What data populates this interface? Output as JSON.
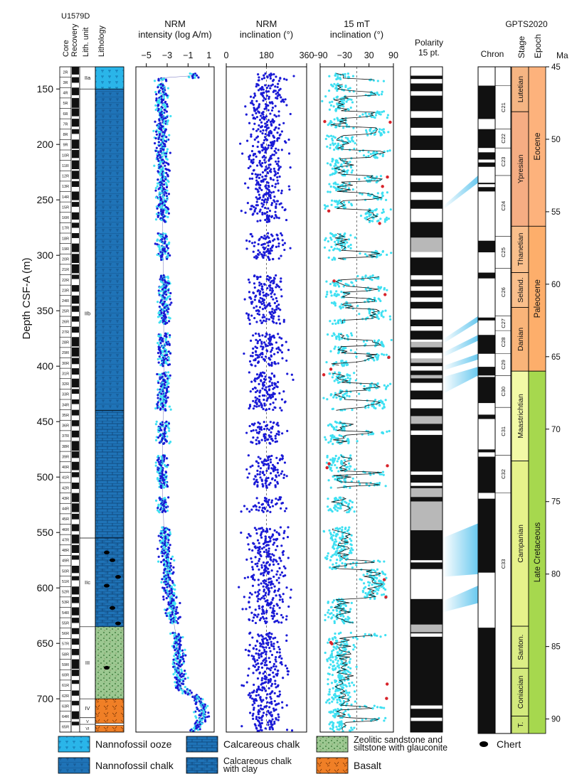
{
  "header": {
    "site": "U1579D",
    "core": "Core",
    "recovery": "Recovery",
    "lith_unit": "Lith. unit",
    "lithology": "Lithology",
    "polarity_line1": "Polarity",
    "polarity_line2": "15 pt.",
    "gpts": "GPTS2020",
    "chron": "Chron",
    "stage": "Stage",
    "epoch": "Epoch",
    "ma": "Ma"
  },
  "depth_axis": {
    "label": "Depth CSF-A (m)",
    "range": [
      130,
      730
    ],
    "ticks": [
      150,
      200,
      250,
      300,
      350,
      400,
      450,
      500,
      550,
      600,
      650,
      700
    ]
  },
  "age_axis": {
    "range": [
      45,
      91
    ],
    "ticks": [
      45,
      50,
      55,
      60,
      65,
      70,
      75,
      80,
      85,
      90
    ]
  },
  "cores": [
    "2R",
    "3R",
    "4R",
    "5R",
    "6R",
    "7R",
    "8R",
    "9R",
    "10R",
    "11R",
    "12R",
    "13R",
    "14R",
    "15R",
    "16R",
    "17R",
    "18R",
    "19R",
    "20R",
    "21R",
    "22R",
    "23R",
    "24R",
    "25R",
    "26R",
    "27R",
    "28R",
    "29R",
    "30R",
    "31R",
    "32R",
    "33R",
    "34R",
    "35R",
    "36R",
    "37R",
    "38R",
    "39R",
    "40R",
    "41R",
    "42R",
    "43R",
    "44R",
    "45R",
    "46R",
    "47R",
    "48R",
    "49R",
    "50R",
    "51R",
    "52R",
    "53R",
    "54R",
    "55R",
    "56R",
    "57R",
    "58R",
    "59R",
    "60R",
    "61R",
    "62R",
    "63R",
    "64R",
    "65R"
  ],
  "lith_units": [
    {
      "label": "IIa",
      "top": 130,
      "bottom": 150
    },
    {
      "label": "IIb",
      "top": 150,
      "bottom": 555
    },
    {
      "label": "IIc",
      "top": 555,
      "bottom": 635
    },
    {
      "label": "III",
      "top": 635,
      "bottom": 700
    },
    {
      "label": "IV",
      "top": 700,
      "bottom": 717
    },
    {
      "label": "V",
      "top": 717,
      "bottom": 723
    },
    {
      "label": "VI",
      "top": 723,
      "bottom": 730
    }
  ],
  "lithology": [
    {
      "type": "ooze",
      "top": 130,
      "bottom": 150
    },
    {
      "type": "chalk",
      "top": 150,
      "bottom": 440
    },
    {
      "type": "calc_chalk",
      "top": 440,
      "bottom": 555
    },
    {
      "type": "chalk_clay",
      "top": 555,
      "bottom": 635
    },
    {
      "type": "zeolitic",
      "top": 635,
      "bottom": 700
    },
    {
      "type": "basalt",
      "top": 700,
      "bottom": 722
    },
    {
      "type": "basalt",
      "top": 724,
      "bottom": 730
    }
  ],
  "chert_depths": [
    568,
    575,
    590,
    598,
    618,
    632,
    672
  ],
  "chart_data": [
    {
      "type": "scatter",
      "title": "NRM\nintensity (log A/m)",
      "xlim": [
        -6,
        1.5
      ],
      "xticks": [
        -5,
        -3,
        -1,
        1
      ],
      "xticklabels": [
        "−5",
        "−3",
        "−1",
        "1"
      ],
      "profile": [
        [
          140,
          -3.5
        ],
        [
          200,
          -3.5
        ],
        [
          300,
          -3.4
        ],
        [
          400,
          -3.3
        ],
        [
          500,
          -3.5
        ],
        [
          550,
          -3.3
        ],
        [
          600,
          -2.8
        ],
        [
          635,
          -2.3
        ],
        [
          650,
          -2.0
        ],
        [
          690,
          -1.7
        ],
        [
          700,
          0.0
        ],
        [
          715,
          0.5
        ],
        [
          730,
          -0.5
        ]
      ]
    },
    {
      "type": "scatter",
      "title": "NRM\ninclination (°)",
      "xlim": [
        0,
        360
      ],
      "xticks": [
        0,
        180,
        360
      ],
      "xticklabels": [
        "0",
        "180",
        "360"
      ],
      "center": 180
    },
    {
      "type": "scatter",
      "title": "15 mT\ninclination (°)",
      "xlim": [
        -90,
        90
      ],
      "xticks": [
        -90,
        -30,
        30,
        90
      ],
      "xticklabels": [
        "−90",
        "−30",
        "30",
        "90"
      ],
      "center": 0
    }
  ],
  "polarity_15pt": [
    {
      "top": 141,
      "bottom": 145,
      "pol": "N"
    },
    {
      "top": 152,
      "bottom": 156,
      "pol": "N"
    },
    {
      "top": 170,
      "bottom": 176,
      "pol": "N"
    },
    {
      "top": 185,
      "bottom": 192,
      "pol": "N"
    },
    {
      "top": 205,
      "bottom": 212,
      "pol": "N"
    },
    {
      "top": 228,
      "bottom": 234,
      "pol": "N"
    },
    {
      "top": 243,
      "bottom": 250,
      "pol": "N"
    },
    {
      "top": 258,
      "bottom": 270,
      "pol": "N"
    },
    {
      "top": 296,
      "bottom": 302,
      "pol": "N"
    },
    {
      "top": 318,
      "bottom": 322,
      "pol": "N"
    },
    {
      "top": 328,
      "bottom": 332,
      "pol": "N"
    },
    {
      "top": 338,
      "bottom": 342,
      "pol": "N"
    },
    {
      "top": 348,
      "bottom": 358,
      "pol": "N"
    },
    {
      "top": 364,
      "bottom": 368,
      "pol": "N"
    },
    {
      "top": 376,
      "bottom": 382,
      "pol": "N"
    },
    {
      "top": 388,
      "bottom": 395,
      "pol": "N"
    },
    {
      "top": 400,
      "bottom": 404,
      "pol": "N"
    },
    {
      "top": 415,
      "bottom": 422,
      "pol": "N"
    },
    {
      "top": 430,
      "bottom": 438,
      "pol": "N"
    },
    {
      "top": 458,
      "bottom": 462,
      "pol": "N"
    },
    {
      "top": 495,
      "bottom": 498,
      "pol": "N"
    },
    {
      "top": 505,
      "bottom": 508,
      "pol": "N"
    },
    {
      "top": 575,
      "bottom": 577,
      "pol": "N"
    },
    {
      "top": 583,
      "bottom": 610,
      "pol": "N"
    },
    {
      "top": 641,
      "bottom": 644,
      "pol": "N"
    },
    {
      "top": 706,
      "bottom": 709,
      "pol": "N"
    },
    {
      "top": 717,
      "bottom": 720,
      "pol": "N"
    }
  ],
  "polarity_gaps": [
    {
      "top": 284,
      "bottom": 297
    },
    {
      "top": 378,
      "bottom": 383
    },
    {
      "top": 393,
      "bottom": 397
    },
    {
      "top": 408,
      "bottom": 411
    },
    {
      "top": 445,
      "bottom": 452
    },
    {
      "top": 510,
      "bottom": 518
    },
    {
      "top": 522,
      "bottom": 548
    },
    {
      "top": 633,
      "bottom": 640
    }
  ],
  "gpts_chrons": [
    {
      "label": "C21",
      "top": 46.3,
      "bottom": 49.3
    },
    {
      "label": "C22",
      "top": 49.3,
      "bottom": 50.6
    },
    {
      "label": "C23",
      "top": 50.6,
      "bottom": 52.5
    },
    {
      "label": "C24",
      "top": 52.5,
      "bottom": 56.7
    },
    {
      "label": "C25",
      "top": 56.7,
      "bottom": 58.9
    },
    {
      "label": "C26",
      "top": 58.9,
      "bottom": 62.2
    },
    {
      "label": "C27",
      "top": 62.2,
      "bottom": 63.2
    },
    {
      "label": "C28",
      "top": 63.2,
      "bottom": 64.8
    },
    {
      "label": "C29",
      "top": 64.8,
      "bottom": 66.3
    },
    {
      "label": "C30",
      "top": 66.3,
      "bottom": 68.5
    },
    {
      "label": "C31",
      "top": 68.5,
      "bottom": 71.8
    },
    {
      "label": "C32",
      "top": 71.8,
      "bottom": 74.4
    },
    {
      "label": "C33",
      "top": 74.4,
      "bottom": 84.2
    }
  ],
  "gpts_normals": [
    {
      "top": 46.3,
      "bottom": 48.6
    },
    {
      "top": 49.3,
      "bottom": 50.6
    },
    {
      "top": 50.9,
      "bottom": 51.4
    },
    {
      "top": 51.6,
      "bottom": 51.9
    },
    {
      "top": 53.0,
      "bottom": 53.1
    },
    {
      "top": 53.3,
      "bottom": 53.6
    },
    {
      "top": 57.0,
      "bottom": 57.8
    },
    {
      "top": 59.2,
      "bottom": 59.6
    },
    {
      "top": 62.3,
      "bottom": 62.5
    },
    {
      "top": 63.5,
      "bottom": 64.8
    },
    {
      "top": 65.7,
      "bottom": 66.3
    },
    {
      "top": 66.4,
      "bottom": 68.2
    },
    {
      "top": 69.0,
      "bottom": 69.3
    },
    {
      "top": 71.4,
      "bottom": 71.6
    },
    {
      "top": 71.9,
      "bottom": 74.4
    },
    {
      "top": 74.8,
      "bottom": 79.9
    },
    {
      "top": 83.7,
      "bottom": 91.0
    }
  ],
  "stages": [
    {
      "label": "Lutetian",
      "top": 45.0,
      "bottom": 48.1,
      "color": "#f5b583"
    },
    {
      "label": "Ypresian",
      "top": 48.1,
      "bottom": 56.0,
      "color": "#f5ad83"
    },
    {
      "label": "Thanetian",
      "top": 56.0,
      "bottom": 59.2,
      "color": "#f9bf8c"
    },
    {
      "label": "Seland.",
      "top": 59.2,
      "bottom": 61.6,
      "color": "#f9bf8c"
    },
    {
      "label": "Danian",
      "top": 61.6,
      "bottom": 66.0,
      "color": "#f9b479"
    },
    {
      "label": "Maastrichtian",
      "top": 66.0,
      "bottom": 72.2,
      "color": "#f2f9a6"
    },
    {
      "label": "Campanian",
      "top": 72.2,
      "bottom": 83.6,
      "color": "#e6f28b"
    },
    {
      "label": "Santon.",
      "top": 83.6,
      "bottom": 86.5,
      "color": "#dcee86"
    },
    {
      "label": "Coniacian",
      "top": 86.5,
      "bottom": 89.8,
      "color": "#d3ea7d"
    },
    {
      "label": "T.",
      "top": 89.8,
      "bottom": 91.0,
      "color": "#cbe574"
    }
  ],
  "epochs": [
    {
      "label": "Eocene",
      "top": 45.0,
      "bottom": 56.0,
      "color": "#fdb27c"
    },
    {
      "label": "Paleocene",
      "top": 56.0,
      "bottom": 66.0,
      "color": "#fdae6b"
    },
    {
      "label": "Late Cretaceous",
      "top": 66.0,
      "bottom": 91.0,
      "color": "#a6d84e"
    }
  ],
  "tie_lines": [
    {
      "depth": [
        256,
        259
      ],
      "age": [
        52.5,
        53.0
      ]
    },
    {
      "depth": [
        376,
        380
      ],
      "age": [
        62.2,
        62.6
      ]
    },
    {
      "depth": [
        388,
        392
      ],
      "age": [
        63.5,
        63.9
      ]
    },
    {
      "depth": [
        400,
        404
      ],
      "age": [
        64.8,
        65.2
      ]
    },
    {
      "depth": [
        410,
        425
      ],
      "age": [
        65.7,
        66.3
      ]
    },
    {
      "depth": [
        555,
        590
      ],
      "age": [
        76.5,
        80.0
      ]
    },
    {
      "depth": [
        612,
        622
      ],
      "age": [
        80.8,
        82.0
      ]
    }
  ],
  "legend": [
    {
      "key": "ooze",
      "label": "Nannofossil ooze"
    },
    {
      "key": "chalk",
      "label": "Nannofossil chalk"
    },
    {
      "key": "calc_chalk",
      "label": "Calcareous chalk"
    },
    {
      "key": "chalk_clay",
      "label": "Calcareous chalk\nwith clay"
    },
    {
      "key": "zeolitic",
      "label": "Zeolitic sandstone and\nsiltstone with glauconite"
    },
    {
      "key": "basalt",
      "label": "Basalt"
    },
    {
      "key": "chert",
      "label": "Chert"
    }
  ],
  "colors": {
    "ooze": "#2ab5e9",
    "chalk": "#1f73b7",
    "zeolitic": "#9cc891",
    "basalt": "#f07f26",
    "cyan": "#3fe0f2",
    "blue": "#1a1ad6",
    "red": "#d8232a",
    "polarity_gap": "#b8b8b8",
    "tie": "#62c6ee"
  }
}
